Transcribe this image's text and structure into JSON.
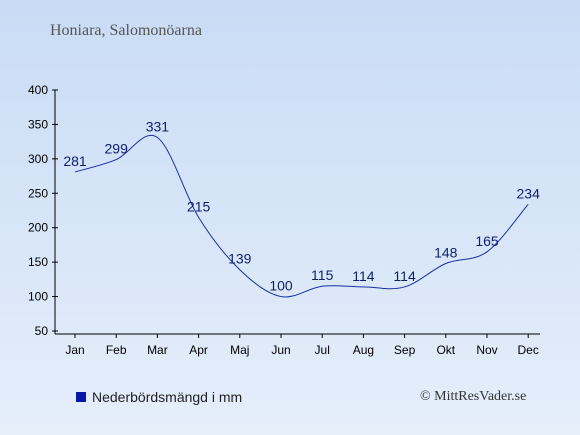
{
  "title": "Honiara, Salomonöarna",
  "legend": {
    "label": "Nederbördsmängd i mm",
    "color": "#0a16a8"
  },
  "copyright": "© MittResVader.se",
  "chart_data": {
    "type": "line",
    "categories": [
      "Jan",
      "Feb",
      "Mar",
      "Apr",
      "Maj",
      "Jun",
      "Jul",
      "Aug",
      "Sep",
      "Okt",
      "Nov",
      "Dec"
    ],
    "series": [
      {
        "name": "Nederbördsmängd i mm",
        "values": [
          281,
          299,
          331,
          215,
          139,
          100,
          115,
          114,
          114,
          148,
          165,
          234
        ]
      }
    ],
    "ylim": [
      50,
      400
    ],
    "yticks": [
      50,
      100,
      150,
      200,
      250,
      300,
      350,
      400
    ],
    "grid": false,
    "legend_position": "bottom-left",
    "line_color": "#1a2fa0"
  }
}
